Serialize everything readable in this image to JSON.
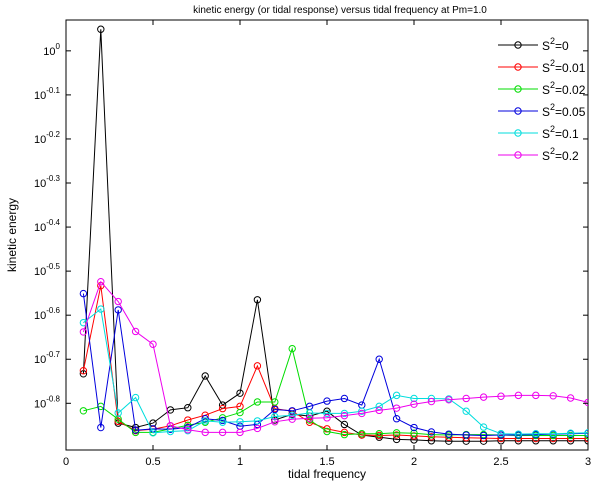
{
  "chart_data": {
    "type": "line",
    "title": "kinetic energy (or tidal response) versus tidal frequency at Pm=1.0",
    "xlabel": "tidal frequency",
    "ylabel": "kinetic energy",
    "xlim": [
      0,
      3
    ],
    "ylim_log10": [
      -0.906,
      0.07
    ],
    "y_scale": "log",
    "grid": false,
    "legend_placement": "top-right",
    "x_ticks": [
      0,
      0.5,
      1,
      1.5,
      2,
      2.5,
      3
    ],
    "x_tick_labels": [
      "0",
      "0.5",
      "1",
      "1.5",
      "2",
      "2.5",
      "3"
    ],
    "y_ticks_log10": [
      -0.8,
      -0.7,
      -0.6,
      -0.5,
      -0.4,
      -0.3,
      -0.2,
      -0.1,
      0
    ],
    "y_tick_exponents": [
      "-0.8",
      "-0.7",
      "-0.6",
      "-0.5",
      "-0.4",
      "-0.3",
      "-0.2",
      "-0.1",
      "0"
    ],
    "y_tick_base": "10",
    "x": [
      0.1,
      0.2,
      0.3,
      0.4,
      0.5,
      0.6,
      0.7,
      0.8,
      0.9,
      1.0,
      1.1,
      1.2,
      1.3,
      1.4,
      1.5,
      1.6,
      1.7,
      1.8,
      1.9,
      2.0,
      2.1,
      2.2,
      2.3,
      2.4,
      2.5,
      2.6,
      2.7,
      2.8,
      2.9,
      3.0
    ],
    "series": [
      {
        "name_base": "S",
        "name_sup": "2",
        "name_suffix": "=0",
        "color": "#000000",
        "values_log10": [
          -0.733,
          0.049,
          -0.845,
          -0.855,
          -0.845,
          -0.815,
          -0.81,
          -0.738,
          -0.804,
          -0.777,
          -0.565,
          -0.838,
          -0.825,
          -0.829,
          -0.818,
          -0.848,
          -0.872,
          -0.877,
          -0.882,
          -0.883,
          -0.885,
          -0.886,
          -0.886,
          -0.886,
          -0.885,
          -0.885,
          -0.885,
          -0.885,
          -0.885,
          -0.885
        ]
      },
      {
        "name_base": "S",
        "name_sup": "2",
        "name_suffix": "=0.01",
        "color": "#ff0000",
        "values_log10": [
          -0.726,
          -0.533,
          -0.841,
          -0.862,
          -0.859,
          -0.851,
          -0.838,
          -0.827,
          -0.812,
          -0.807,
          -0.715,
          -0.812,
          -0.818,
          -0.843,
          -0.858,
          -0.866,
          -0.872,
          -0.873,
          -0.872,
          -0.874,
          -0.876,
          -0.877,
          -0.878,
          -0.879,
          -0.88,
          -0.88,
          -0.88,
          -0.88,
          -0.88,
          -0.88
        ]
      },
      {
        "name_base": "S",
        "name_sup": "2",
        "name_suffix": "=0.02",
        "color": "#00dd00",
        "values_log10": [
          -0.817,
          -0.807,
          -0.836,
          -0.866,
          -0.866,
          -0.858,
          -0.85,
          -0.843,
          -0.833,
          -0.821,
          -0.797,
          -0.797,
          -0.676,
          -0.838,
          -0.864,
          -0.871,
          -0.869,
          -0.869,
          -0.867,
          -0.868,
          -0.871,
          -0.872,
          -0.871,
          -0.871,
          -0.872,
          -0.873,
          -0.873,
          -0.873,
          -0.873,
          -0.873
        ]
      },
      {
        "name_base": "S",
        "name_sup": "2",
        "name_suffix": "=0.05",
        "color": "#0000dd",
        "values_log10": [
          -0.551,
          -0.855,
          -0.588,
          -0.861,
          -0.858,
          -0.859,
          -0.855,
          -0.835,
          -0.839,
          -0.852,
          -0.848,
          -0.814,
          -0.817,
          -0.807,
          -0.795,
          -0.789,
          -0.804,
          -0.7,
          -0.835,
          -0.855,
          -0.865,
          -0.87,
          -0.872,
          -0.873,
          -0.872,
          -0.872,
          -0.871,
          -0.87,
          -0.869,
          -0.868
        ]
      },
      {
        "name_base": "S",
        "name_sup": "2",
        "name_suffix": "=0.1",
        "color": "#00dddd",
        "values_log10": [
          -0.617,
          -0.586,
          -0.822,
          -0.787,
          -0.867,
          -0.864,
          -0.862,
          -0.84,
          -0.843,
          -0.842,
          -0.84,
          -0.83,
          -0.827,
          -0.822,
          -0.823,
          -0.823,
          -0.818,
          -0.807,
          -0.782,
          -0.789,
          -0.789,
          -0.79,
          -0.818,
          -0.854,
          -0.869,
          -0.87,
          -0.869,
          -0.869,
          -0.868,
          -0.867
        ]
      },
      {
        "name_base": "S",
        "name_sup": "2",
        "name_suffix": "=0.2",
        "color": "#ee00ee",
        "values_log10": [
          -0.638,
          -0.524,
          -0.569,
          -0.637,
          -0.666,
          -0.851,
          -0.86,
          -0.866,
          -0.866,
          -0.866,
          -0.857,
          -0.842,
          -0.836,
          -0.834,
          -0.833,
          -0.828,
          -0.823,
          -0.816,
          -0.811,
          -0.802,
          -0.796,
          -0.792,
          -0.789,
          -0.786,
          -0.784,
          -0.782,
          -0.782,
          -0.783,
          -0.788,
          -0.798
        ]
      }
    ]
  }
}
